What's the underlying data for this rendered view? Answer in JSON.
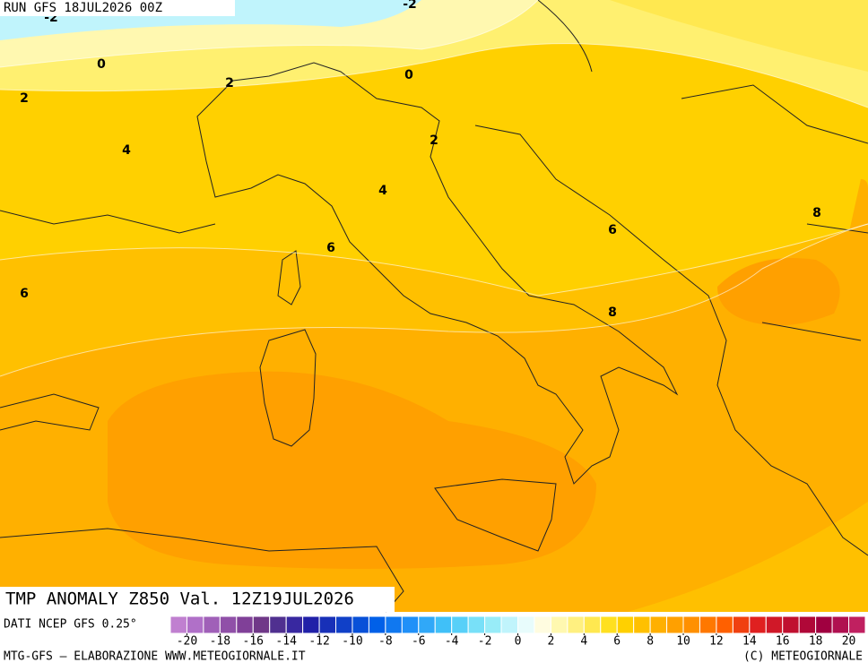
{
  "header": {
    "run": "RUN GFS 18JUL2026 00Z"
  },
  "title": "TMP ANOMALY Z850 Val. 12Z19JUL2026",
  "source": "DATI NCEP GFS 0.25°",
  "footer": {
    "left": "MTG-GFS — ELABORAZIONE WWW.METEOGIORNALE.IT",
    "right": "(C) METEOGIORNALE"
  },
  "contour_labels": [
    -2,
    -2,
    0,
    0,
    2,
    2,
    2,
    4,
    4,
    6,
    6,
    6,
    8,
    8
  ],
  "colorbar": {
    "min": -21,
    "max": 21,
    "ticks": [
      -20,
      -18,
      -16,
      -14,
      -12,
      -10,
      -8,
      -6,
      -4,
      -2,
      0,
      2,
      4,
      6,
      8,
      10,
      12,
      14,
      16,
      18,
      20
    ],
    "colors": [
      "#c080d0",
      "#b070c8",
      "#a060b8",
      "#9050a8",
      "#804098",
      "#703888",
      "#503090",
      "#3828a0",
      "#2020a8",
      "#1830b8",
      "#1040c8",
      "#0850d8",
      "#0060e8",
      "#1078f0",
      "#2090f8",
      "#30a8f8",
      "#40c0f8",
      "#58d0f8",
      "#78e0f8",
      "#98ecf8",
      "#c0f4fc",
      "#e8fcfc",
      "#fffce0",
      "#fff8b0",
      "#fff080",
      "#ffe850",
      "#ffe020",
      "#ffd000",
      "#ffc000",
      "#ffb000",
      "#ffa000",
      "#ff9000",
      "#ff7800",
      "#ff6000",
      "#f04010",
      "#e02020",
      "#d01828",
      "#c01030",
      "#b00838",
      "#a00040",
      "#b01050",
      "#c02060"
    ]
  }
}
